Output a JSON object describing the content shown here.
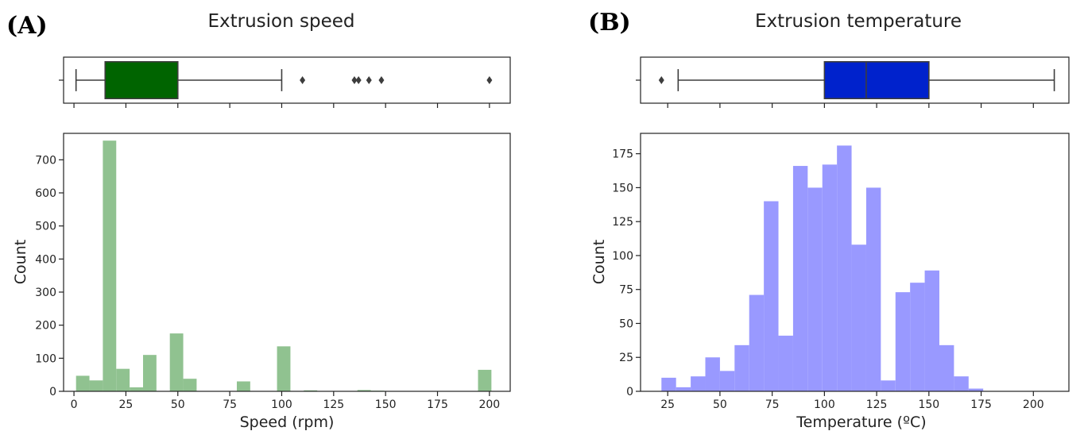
{
  "chart_data": [
    {
      "type": "histogram",
      "panel_label": "(A)",
      "title": "Extrusion speed",
      "xlabel": "Speed (rpm)",
      "ylabel": "Count",
      "xlim": [
        -5,
        210
      ],
      "ylim": [
        0,
        780
      ],
      "xticks": [
        0,
        25,
        50,
        75,
        100,
        125,
        150,
        175,
        200
      ],
      "yticks": [
        0,
        100,
        200,
        300,
        400,
        500,
        600,
        700
      ],
      "color": "#90c290",
      "bin_width": 6.45,
      "bins": [
        {
          "x0": 1.0,
          "count": 47
        },
        {
          "x0": 7.45,
          "count": 33
        },
        {
          "x0": 13.9,
          "count": 758
        },
        {
          "x0": 20.35,
          "count": 68
        },
        {
          "x0": 26.8,
          "count": 12
        },
        {
          "x0": 33.25,
          "count": 110
        },
        {
          "x0": 39.7,
          "count": 0
        },
        {
          "x0": 46.15,
          "count": 175
        },
        {
          "x0": 52.6,
          "count": 38
        },
        {
          "x0": 59.05,
          "count": 0
        },
        {
          "x0": 65.5,
          "count": 0
        },
        {
          "x0": 71.95,
          "count": 0
        },
        {
          "x0": 78.4,
          "count": 30
        },
        {
          "x0": 84.85,
          "count": 0
        },
        {
          "x0": 91.3,
          "count": 0
        },
        {
          "x0": 97.75,
          "count": 136
        },
        {
          "x0": 104.2,
          "count": 0
        },
        {
          "x0": 110.65,
          "count": 3
        },
        {
          "x0": 117.1,
          "count": 0
        },
        {
          "x0": 123.55,
          "count": 0
        },
        {
          "x0": 130.0,
          "count": 0
        },
        {
          "x0": 136.45,
          "count": 4
        },
        {
          "x0": 142.9,
          "count": 2
        },
        {
          "x0": 149.35,
          "count": 0
        },
        {
          "x0": 155.8,
          "count": 0
        },
        {
          "x0": 162.25,
          "count": 0
        },
        {
          "x0": 168.7,
          "count": 0
        },
        {
          "x0": 175.15,
          "count": 0
        },
        {
          "x0": 181.6,
          "count": 0
        },
        {
          "x0": 188.05,
          "count": 0
        },
        {
          "x0": 194.5,
          "count": 65
        }
      ],
      "boxplot": {
        "color": "#006400",
        "whisker_low": 1,
        "q1": 15,
        "median": 15,
        "q3": 50,
        "whisker_high": 100,
        "outliers": [
          110,
          135,
          137,
          142,
          148,
          200
        ]
      }
    },
    {
      "type": "histogram",
      "panel_label": "(B)",
      "title": "Extrusion temperature",
      "xlabel": "Temperature (ºC)",
      "ylabel": "Count",
      "xlim": [
        12,
        217
      ],
      "ylim": [
        0,
        190
      ],
      "xticks": [
        25,
        50,
        75,
        100,
        125,
        150,
        175,
        200
      ],
      "yticks": [
        0,
        25,
        50,
        75,
        100,
        125,
        150,
        175
      ],
      "color": "#9999ff",
      "bin_width": 7.0,
      "bins": [
        {
          "x0": 22,
          "count": 10
        },
        {
          "x0": 29,
          "count": 3
        },
        {
          "x0": 36,
          "count": 11
        },
        {
          "x0": 43,
          "count": 25
        },
        {
          "x0": 50,
          "count": 15
        },
        {
          "x0": 57,
          "count": 34
        },
        {
          "x0": 64,
          "count": 71
        },
        {
          "x0": 71,
          "count": 140
        },
        {
          "x0": 78,
          "count": 41
        },
        {
          "x0": 85,
          "count": 166
        },
        {
          "x0": 92,
          "count": 150
        },
        {
          "x0": 99,
          "count": 167
        },
        {
          "x0": 106,
          "count": 181
        },
        {
          "x0": 113,
          "count": 108
        },
        {
          "x0": 120,
          "count": 150
        },
        {
          "x0": 127,
          "count": 8
        },
        {
          "x0": 134,
          "count": 73
        },
        {
          "x0": 141,
          "count": 80
        },
        {
          "x0": 148,
          "count": 89
        },
        {
          "x0": 155,
          "count": 34
        },
        {
          "x0": 162,
          "count": 11
        },
        {
          "x0": 169,
          "count": 2
        }
      ],
      "boxplot": {
        "color": "#0022cc",
        "whisker_low": 30,
        "q1": 100,
        "median": 120,
        "q3": 150,
        "whisker_high": 210,
        "outliers": [
          22
        ]
      }
    }
  ]
}
